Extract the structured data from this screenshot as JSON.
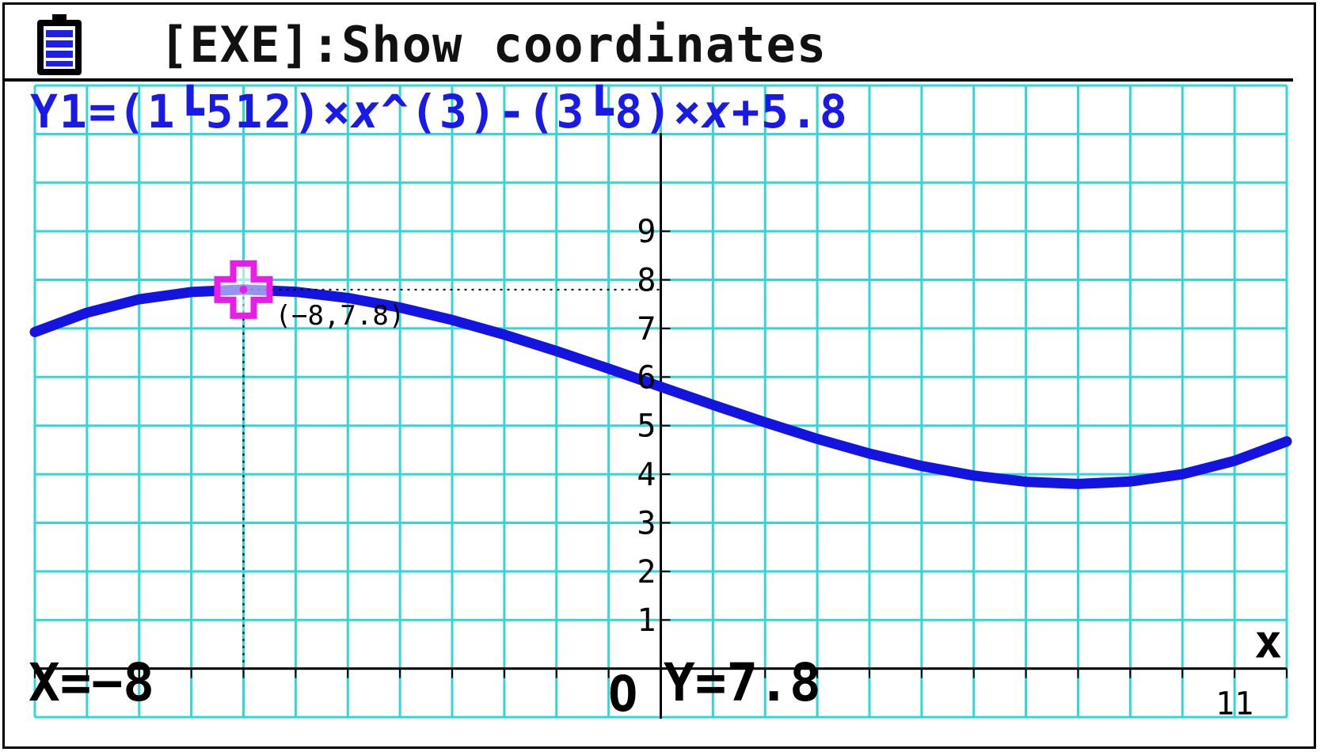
{
  "status_bar": {
    "battery_icon": "battery-icon",
    "message": "[EXE]:Show coordinates"
  },
  "equation": {
    "prefix": "Y1=(1┗512)×",
    "var1": "x",
    "middle": "^(3)-(3┗8)×",
    "var2": "x",
    "suffix": "+5.8"
  },
  "readout": {
    "x_text": "X=−8",
    "y_text": "Y=7.8",
    "origin": "O"
  },
  "colors": {
    "grid": "#33d6d6",
    "curve": "#1414e0",
    "cursor": "#e81ee8",
    "axis": "#000000",
    "text": "#000000",
    "equation": "#1a1ae6"
  },
  "chart_data": {
    "type": "line",
    "title": "",
    "xlabel": "x",
    "ylabel": "",
    "function": "Y1=(1/512)x^3-(3/8)x+5.8",
    "xlim": [
      -12,
      12
    ],
    "ylim": [
      -1,
      12
    ],
    "grid": true,
    "y_tick_labels": [
      "1",
      "2",
      "3",
      "4",
      "5",
      "6",
      "7",
      "8",
      "9"
    ],
    "x_tick_labels": [
      "11"
    ],
    "series": [
      {
        "x": [
          -12.0,
          -11.0,
          -10.0,
          -9.0,
          -8.0,
          -7.0,
          -6.0,
          -5.0,
          -4.0,
          -3.0,
          -2.0,
          -1.0,
          0.0,
          1.0,
          2.0,
          3.0,
          4.0,
          5.0,
          6.0,
          7.0,
          8.0,
          9.0,
          10.0,
          11.0,
          12.0
        ],
        "values": [
          6.925,
          7.325,
          7.6,
          7.75,
          7.8,
          7.755,
          7.628,
          7.431,
          7.175,
          6.872,
          6.534,
          6.173,
          5.8,
          5.427,
          5.066,
          4.728,
          4.425,
          4.169,
          3.972,
          3.845,
          3.8,
          3.85,
          4.0,
          4.275,
          4.675
        ]
      }
    ],
    "trace_point": {
      "x": -8,
      "y": 7.8,
      "label": "(−8,7.8)"
    }
  }
}
